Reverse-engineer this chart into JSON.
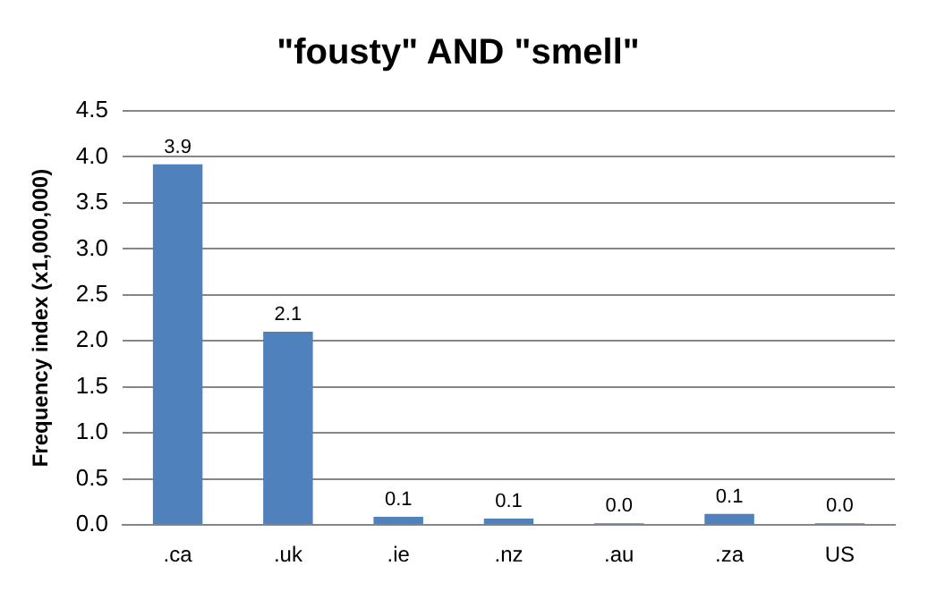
{
  "chart_data": {
    "type": "bar",
    "title": "\"fousty\" AND \"smell\"",
    "ylabel": "Frequency index (x1,000,000)",
    "categories": [
      ".ca",
      ".uk",
      ".ie",
      ".nz",
      ".au",
      ".za",
      "US"
    ],
    "values": [
      3.92,
      2.1,
      0.09,
      0.07,
      0.02,
      0.12,
      0.02
    ],
    "color": "#4f81bd",
    "value_labels": [
      "3.9",
      "2.1",
      "0.1",
      "0.1",
      "0.0",
      "0.1",
      "0.0"
    ],
    "ylim": [
      0,
      4.5
    ],
    "yticks": [
      {
        "value": 0,
        "label": "0.0"
      },
      0.5,
      {
        "value": 1,
        "label": "1.0"
      },
      1.5,
      {
        "value": 2,
        "label": "2.0"
      },
      2.5,
      {
        "value": 3,
        "label": "3.0"
      },
      3.5,
      {
        "value": 4,
        "label": "4.0"
      },
      4.5
    ],
    "grid": "y"
  }
}
